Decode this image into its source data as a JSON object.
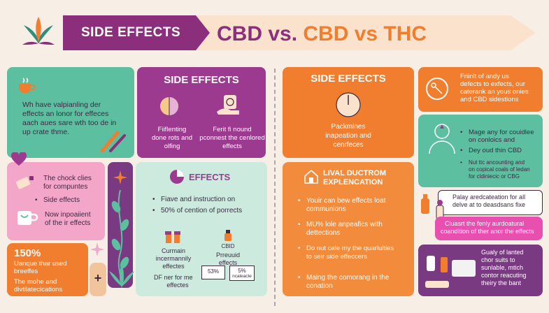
{
  "header": {
    "banner_label": "SIDE EFFECTS",
    "title_part1": "CBD vs. ",
    "title_part2": "CBD vs THC",
    "colors": {
      "purple": "#8b2f7d",
      "orange": "#f07e2e",
      "peach": "#fbe2cc"
    }
  },
  "left": {
    "intro": [
      "Wh have valpianling der",
      "effects an lonor for effeces",
      "aach aues sare wth too de in",
      "up crate thme."
    ],
    "side_effects_card": {
      "title": "SIDE EFFECTS",
      "left_text": [
        "Fiiflenting",
        "done rots and",
        "olfing"
      ],
      "right_text": [
        "Ferit fi nound",
        "pconnest the cenlored",
        "effects"
      ]
    },
    "pink_card": {
      "line1": [
        "The chock clies",
        "for compuntes"
      ],
      "line2": "Side effects",
      "line3": [
        "Now inpoaiient",
        "of the ir effects"
      ]
    },
    "orange_card": {
      "stat": "150%",
      "line1": [
        "Uanque thar used",
        "breeffes"
      ],
      "line2": [
        "The mohe and",
        "divtilatecications"
      ]
    },
    "effects_card": {
      "title": "EFFECTS",
      "bullet1": "Fiave and instruction on",
      "bullet2": "50% of cention of porrects",
      "sub_left": [
        "Curmain",
        "incermannily",
        "effectes"
      ],
      "sub_left_bullet": [
        "DF ner for me",
        "effectes"
      ],
      "sub_right_label": "CBID",
      "sub_right": [
        "Prreuuid",
        "effects"
      ],
      "mini1_value": "53%",
      "mini2_value": "5%",
      "mini2_label": "ncaleacte"
    }
  },
  "right": {
    "side_effects_card": {
      "title": "SIDE EFFECTS",
      "text": [
        "Packmines",
        "inapeation and",
        "cenrfeces"
      ]
    },
    "top_right_card": {
      "text": [
        "Friinlt of andy us",
        "defects to exfects, our",
        "caterank an yous onies",
        "and CBD sidestions"
      ]
    },
    "teal_card": {
      "bullet1": [
        "Mage any for couidlee",
        "on conloics and"
      ],
      "bullet2": "Dey oud thin CBD",
      "bullet3": [
        "Nut ttc ancounting and",
        "on copical coals of ledan",
        "for cldiniecic or CBG"
      ]
    },
    "explanation_card": {
      "title_line1": "LIVAL DUCTROM",
      "title_line2": "EXPLENCATION",
      "bullet1": [
        "Youir can bew effects loat",
        "communions"
      ],
      "bullet2": [
        "MU% lole anpeafics with",
        "dettections"
      ],
      "bullet3": [
        "Do nut cale my the quarluities",
        "to seir side effeccers"
      ],
      "bullet4": [
        "Maing the comorang in the",
        "conation"
      ]
    },
    "callout_card": {
      "text": [
        "Palay aredcateation for all",
        "delve at to deasdsans fixe"
      ]
    },
    "pink_card": {
      "text": [
        "Cluasrt the fenly aurdoatural",
        "coandition of ther anor the effects"
      ]
    },
    "purple_card": {
      "text": [
        "Gualy of lanted",
        "chor suits to",
        "sunlable, mtich",
        "contor reacuting",
        "theiry the bant"
      ]
    }
  }
}
